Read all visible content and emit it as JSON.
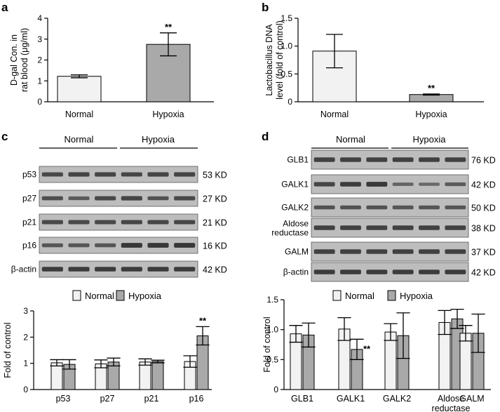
{
  "panels": {
    "a": "a",
    "b": "b",
    "c": "c",
    "d": "d"
  },
  "colors": {
    "normal": "#f2f2f2",
    "hypoxia": "#a9a9a9",
    "band": "#2c2c2c",
    "blot": "#bdbdbd"
  },
  "chart_data": [
    {
      "id": "a",
      "type": "bar",
      "categories": [
        "Normal",
        "Hypoxia"
      ],
      "values": [
        1.22,
        2.75
      ],
      "errors": [
        0.07,
        0.55
      ],
      "ylabel_lines": [
        "D-gal Con. in",
        "rat blood (μg/ml)"
      ],
      "ylim": [
        0,
        4
      ],
      "yticks": [
        "0",
        "1",
        "2",
        "3",
        "4"
      ],
      "annotations": [
        {
          "category": "Hypoxia",
          "text": "**"
        }
      ]
    },
    {
      "id": "b",
      "type": "bar",
      "categories": [
        "Normal",
        "Hypoxia"
      ],
      "values": [
        0.91,
        0.13
      ],
      "errors": [
        0.3,
        0.01
      ],
      "ylabel_lines": [
        "Lactobacillus DNA",
        "level (fold of control)"
      ],
      "ylim": [
        0,
        1.5
      ],
      "yticks": [
        "0",
        "0.5",
        "1.0",
        "1.5"
      ],
      "annotations": [
        {
          "category": "Hypoxia",
          "text": "**"
        }
      ]
    },
    {
      "id": "c",
      "type": "bar",
      "categories": [
        "p53",
        "p27",
        "p21",
        "p16"
      ],
      "series": [
        {
          "name": "Normal",
          "values": [
            1.02,
            0.98,
            1.05,
            1.07
          ],
          "errors": [
            0.12,
            0.15,
            0.12,
            0.22
          ]
        },
        {
          "name": "Hypoxia",
          "values": [
            0.96,
            1.05,
            1.07,
            2.05
          ],
          "errors": [
            0.18,
            0.15,
            0.05,
            0.35
          ]
        }
      ],
      "ylabel": "Fold of control",
      "ylim": [
        0,
        3
      ],
      "yticks": [
        "0",
        "1",
        "2",
        "3"
      ],
      "legend": "top",
      "annotations": [
        {
          "category": "p16",
          "series": "Hypoxia",
          "text": "**"
        }
      ]
    },
    {
      "id": "d",
      "type": "bar",
      "categories": [
        "GLB1",
        "GALK1",
        "GALK2",
        "Aldose reductase",
        "GALM"
      ],
      "category_label_lines": [
        [
          "GLB1"
        ],
        [
          "GALK1"
        ],
        [
          "GALK2"
        ],
        [
          "Aldose",
          "reductase"
        ],
        [
          "GALM"
        ]
      ],
      "series": [
        {
          "name": "Normal",
          "values": [
            0.93,
            1.01,
            0.96,
            1.12,
            0.94
          ],
          "errors": [
            0.14,
            0.19,
            0.14,
            0.2,
            0.13
          ]
        },
        {
          "name": "Hypoxia",
          "values": [
            0.91,
            0.67,
            0.9,
            1.18,
            0.94
          ],
          "errors": [
            0.2,
            0.17,
            0.38,
            0.16,
            0.32
          ]
        }
      ],
      "ylabel": "Fold of control",
      "ylim": [
        0,
        1.5
      ],
      "yticks": [
        "0",
        "0.5",
        "1.0",
        "1.5"
      ],
      "legend": "top",
      "annotations": [
        {
          "category": "GALK1",
          "series": "Hypoxia",
          "text": "**"
        }
      ]
    }
  ],
  "blots": {
    "c": {
      "groups": [
        "Normal",
        "Hypoxia"
      ],
      "rows": [
        {
          "label": "p53",
          "kd": "53 KD",
          "n": [
            0.75,
            0.8,
            0.8
          ],
          "h": [
            0.78,
            0.8,
            0.8
          ]
        },
        {
          "label": "p27",
          "kd": "27 KD",
          "n": [
            0.7,
            0.55,
            0.75
          ],
          "h": [
            0.8,
            0.65,
            0.75
          ]
        },
        {
          "label": "p21",
          "kd": "21 KD",
          "n": [
            0.75,
            0.75,
            0.75
          ],
          "h": [
            0.78,
            0.78,
            0.78
          ]
        },
        {
          "label": "p16",
          "kd": "16 KD",
          "n": [
            0.6,
            0.6,
            0.6
          ],
          "h": [
            0.95,
            0.95,
            0.95
          ]
        },
        {
          "label": "β-actin",
          "kd": "42 KD",
          "n": [
            0.9,
            0.9,
            0.9
          ],
          "h": [
            0.9,
            0.9,
            0.9
          ]
        }
      ]
    },
    "d": {
      "groups": [
        "Normal",
        "Hypoxia"
      ],
      "rows": [
        {
          "label_lines": [
            "GLB1"
          ],
          "kd": "76 KD",
          "n": [
            0.85,
            0.85,
            0.85
          ],
          "h": [
            0.85,
            0.85,
            0.85
          ]
        },
        {
          "label_lines": [
            "GALK1"
          ],
          "kd": "42 KD",
          "n": [
            0.8,
            0.9,
            0.95
          ],
          "h": [
            0.45,
            0.4,
            0.55
          ]
        },
        {
          "label_lines": [
            "GALK2"
          ],
          "kd": "50 KD",
          "n": [
            0.65,
            0.65,
            0.65
          ],
          "h": [
            0.6,
            0.6,
            0.6
          ]
        },
        {
          "label_lines": [
            "Aldose",
            "reductase"
          ],
          "kd": "38 KD",
          "n": [
            0.85,
            0.85,
            0.85
          ],
          "h": [
            0.85,
            0.85,
            0.85
          ]
        },
        {
          "label_lines": [
            "GALM"
          ],
          "kd": "37 KD",
          "n": [
            0.85,
            0.85,
            0.85
          ],
          "h": [
            0.85,
            0.85,
            0.85
          ]
        },
        {
          "label_lines": [
            "β-actin"
          ],
          "kd": "42 KD",
          "n": [
            0.9,
            0.9,
            0.9
          ],
          "h": [
            0.9,
            0.9,
            0.9
          ]
        }
      ]
    }
  }
}
